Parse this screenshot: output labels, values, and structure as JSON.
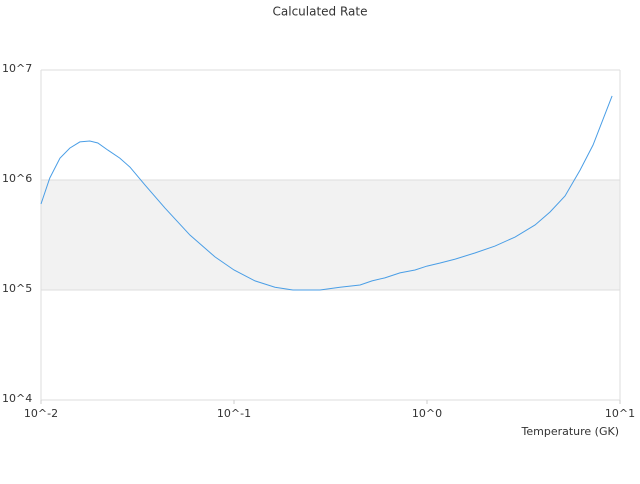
{
  "chart_data": {
    "type": "line",
    "title": "Calculated Rate",
    "x_label": "Temperature (GK)",
    "x_scale": "log",
    "y_scale": "log",
    "grid": true,
    "band": {
      "range": [
        100000,
        1000000
      ],
      "color": "#f2f2f2"
    },
    "xlim": [
      0.01,
      10
    ],
    "xticks": [
      {
        "value": 0.01,
        "label": "10^-2"
      },
      {
        "value": 0.1,
        "label": "10^-1"
      },
      {
        "value": 1,
        "label": "10^0"
      },
      {
        "value": 10,
        "label": "10^1"
      }
    ],
    "ylim": [
      10000,
      10000000
    ],
    "yticks": [
      {
        "value": 10000,
        "label": "10^4"
      },
      {
        "value": 100000,
        "label": "10^5"
      },
      {
        "value": 1000000,
        "label": "10^6"
      },
      {
        "value": 10000000,
        "label": "10^7"
      }
    ],
    "series": [
      {
        "color": "#4a9ee6",
        "x": [
          0.01,
          0.0111,
          0.01254,
          0.0141,
          0.0159,
          0.0179,
          0.0197,
          0.0222,
          0.0256,
          0.0289,
          0.0346,
          0.0439,
          0.0591,
          0.0797,
          0.1,
          0.1285,
          0.163,
          0.202,
          0.279,
          0.354,
          0.45,
          0.519,
          0.605,
          0.724,
          0.867,
          1.0,
          1.17,
          1.4,
          1.77,
          2.25,
          2.86,
          3.63,
          4.34,
          5.19,
          6.21,
          7.25,
          9.1
        ],
        "values": [
          605000,
          1040000,
          1580000,
          1950000,
          2220000,
          2260000,
          2170000,
          1870000,
          1580000,
          1310000,
          900000,
          556000,
          316000,
          200000,
          152000,
          121000,
          106000,
          100000,
          100000,
          106000,
          111000,
          121000,
          129000,
          143000,
          152000,
          165000,
          176000,
          191000,
          217000,
          251000,
          303000,
          390000,
          512000,
          716000,
          1230000,
          2080000,
          5810000
        ]
      }
    ]
  }
}
